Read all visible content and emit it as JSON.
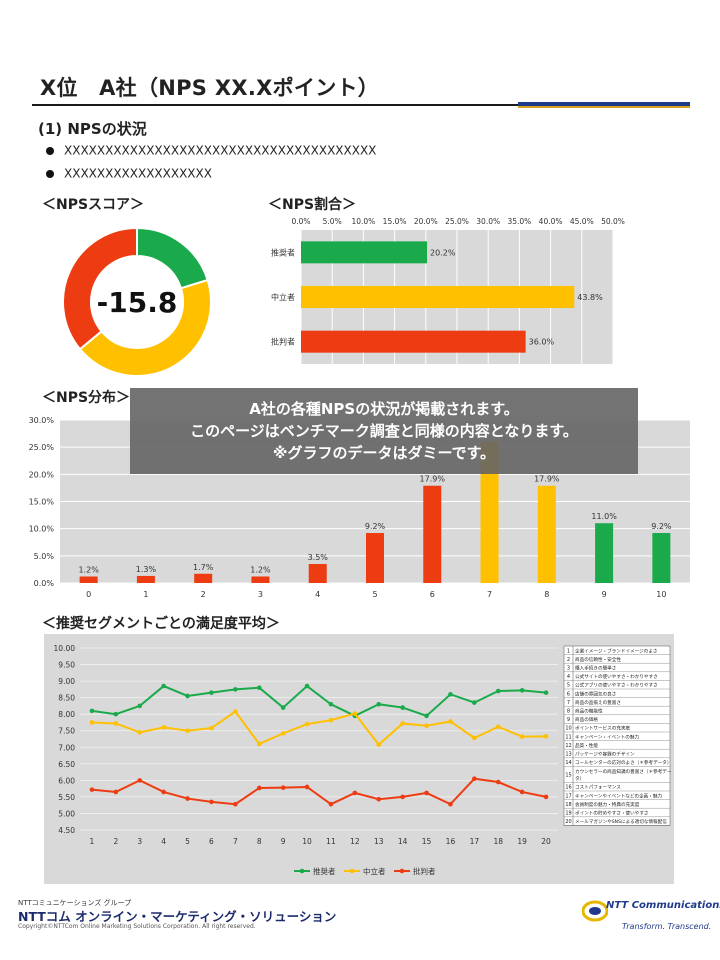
{
  "title": "X位　A社（NPS XX.Xポイント）",
  "section_heading": "(1) NPSの状況",
  "bullets": [
    "XXXXXXXXXXXXXXXXXXXXXXXXXXXXXXXXXXXXXX",
    "XXXXXXXXXXXXXXXXXX"
  ],
  "colors": {
    "promoter": "#1aaa4b",
    "neutral": "#ffc000",
    "detractor": "#ee3c12",
    "plot_bg": "#d9d9d9"
  },
  "overlay": {
    "line1": "A社の各種NPSの状況が掲載されます。",
    "line2": "このページはベンチマーク調査と同様の内容となります。",
    "line3": "※グラフのデータはダミーです。"
  },
  "footer": {
    "group": "NTTコミュニケーションズ グループ",
    "company": "NTTコム オンライン・マーケティング・ソリューション",
    "copyright": "Copyright©NTTCom Online Marketing Solutions Corporation. All right reserved.",
    "logo": "NTT Communications",
    "tagline": "Transform. Transcend."
  },
  "chart_data": [
    {
      "type": "pie",
      "heading": "＜NPSスコア＞",
      "center_label": "-15.8",
      "labels": [
        "推奨者",
        "中立者",
        "批判者"
      ],
      "values": [
        20.2,
        43.8,
        36.0
      ]
    },
    {
      "type": "bar",
      "heading": "＜NPS割合＞",
      "orientation": "horizontal",
      "categories": [
        "推奨者",
        "中立者",
        "批判者"
      ],
      "values": [
        20.2,
        43.8,
        36.0
      ],
      "value_labels": [
        "20.2%",
        "43.8%",
        "36.0%"
      ],
      "xlim": [
        0,
        50
      ],
      "tick_labels": [
        "0.0%",
        "5.0%",
        "10.0%",
        "15.0%",
        "20.0%",
        "25.0%",
        "30.0%",
        "35.0%",
        "40.0%",
        "45.0%",
        "50.0%"
      ],
      "grid": true
    },
    {
      "type": "bar",
      "heading": "＜NPS分布＞",
      "categories": [
        "0",
        "1",
        "2",
        "3",
        "4",
        "5",
        "6",
        "7",
        "8",
        "9",
        "10"
      ],
      "values": [
        1.2,
        1.3,
        1.7,
        1.2,
        3.5,
        9.2,
        17.9,
        26.0,
        17.9,
        11.0,
        9.2
      ],
      "value_labels": [
        "1.2%",
        "1.3%",
        "1.7%",
        "1.2%",
        "3.5%",
        "9.2%",
        "17.9%",
        "",
        "17.9%",
        "11.0%",
        "9.2%"
      ],
      "groups": [
        "detractor",
        "detractor",
        "detractor",
        "detractor",
        "detractor",
        "detractor",
        "detractor",
        "neutral",
        "neutral",
        "promoter",
        "promoter"
      ],
      "ylim": [
        0,
        30
      ],
      "tick_labels": [
        "0.0%",
        "5.0%",
        "10.0%",
        "15.0%",
        "20.0%",
        "25.0%",
        "30.0%"
      ],
      "grid": true
    },
    {
      "type": "line",
      "heading": "＜推奨セグメントごとの満足度平均＞",
      "x": [
        1,
        2,
        3,
        4,
        5,
        6,
        7,
        8,
        9,
        10,
        11,
        12,
        13,
        14,
        15,
        16,
        17,
        18,
        19,
        20
      ],
      "ylim": [
        4.5,
        10.0
      ],
      "tick_labels": [
        "4.50",
        "5.00",
        "5.50",
        "6.00",
        "6.50",
        "7.00",
        "7.50",
        "8.00",
        "8.50",
        "9.00",
        "9.50",
        "10.00"
      ],
      "grid": true,
      "legend_position": "bottom",
      "series": [
        {
          "name": "推奨者",
          "values": [
            8.1,
            8.0,
            8.25,
            8.85,
            8.55,
            8.65,
            8.75,
            8.8,
            8.2,
            8.85,
            8.3,
            7.95,
            8.3,
            8.2,
            7.95,
            8.6,
            8.35,
            8.7,
            8.72,
            8.65
          ]
        },
        {
          "name": "中立者",
          "values": [
            7.75,
            7.72,
            7.45,
            7.6,
            7.5,
            7.58,
            8.08,
            7.1,
            7.42,
            7.7,
            7.82,
            8.02,
            7.08,
            7.72,
            7.65,
            7.78,
            7.28,
            7.62,
            7.32,
            7.33
          ]
        },
        {
          "name": "批判者",
          "values": [
            5.72,
            5.65,
            6.0,
            5.65,
            5.45,
            5.35,
            5.28,
            5.77,
            5.78,
            5.8,
            5.28,
            5.62,
            5.43,
            5.5,
            5.62,
            5.28,
            6.05,
            5.95,
            5.65,
            5.5
          ]
        }
      ],
      "segment_table": [
        {
          "no": "1",
          "label": "企業イメージ・ブランドイメージのよさ"
        },
        {
          "no": "2",
          "label": "商品の信頼性・安全性"
        },
        {
          "no": "3",
          "label": "購入手続きの簡単さ"
        },
        {
          "no": "4",
          "label": "公式サイトの使いやすさ・わかりやすさ"
        },
        {
          "no": "5",
          "label": "公式アプリの使いやすさ・わかりやすさ"
        },
        {
          "no": "6",
          "label": "店舗の雰囲気の良さ"
        },
        {
          "no": "7",
          "label": "商品の品揃えの豊富さ"
        },
        {
          "no": "8",
          "label": "商品の機能性"
        },
        {
          "no": "9",
          "label": "商品の価格"
        },
        {
          "no": "10",
          "label": "ポイントサービスの充実度"
        },
        {
          "no": "11",
          "label": "キャンペーン・イベントの魅力"
        },
        {
          "no": "12",
          "label": "品質・性能"
        },
        {
          "no": "13",
          "label": "パッケージや容器のデザイン"
        },
        {
          "no": "14",
          "label": "コールセンターの応対のよさ（＊参考データ）"
        },
        {
          "no": "15",
          "label": "カウンセラーの商品知識の豊富さ（＊参考データ）"
        },
        {
          "no": "16",
          "label": "コストパフォーマンス"
        },
        {
          "no": "17",
          "label": "キャンペーンやイベントなどの企画・魅力"
        },
        {
          "no": "18",
          "label": "会員制度の魅力・特典の充実度"
        },
        {
          "no": "19",
          "label": "ポイントの貯めやすさ・使いやすさ"
        },
        {
          "no": "20",
          "label": "メールマガジンやSNSによる適切な情報配信"
        }
      ]
    }
  ]
}
